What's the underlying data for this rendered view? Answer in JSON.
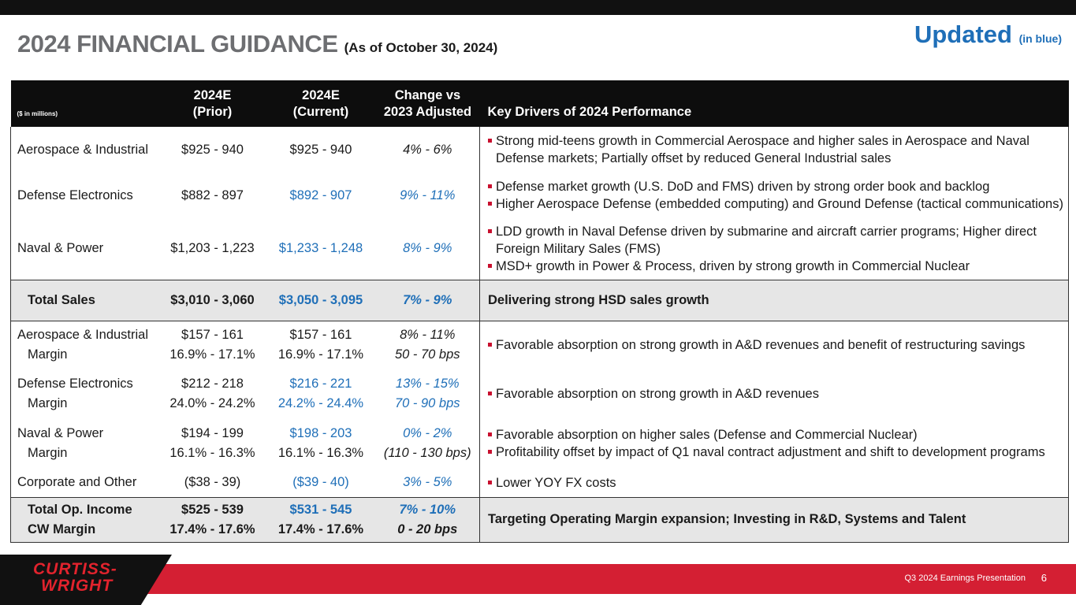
{
  "title": {
    "main": "2024 FINANCIAL GUIDANCE",
    "sub": "(As of October 30, 2024)"
  },
  "updated": {
    "label": "Updated",
    "note": "(in blue)"
  },
  "colors": {
    "accent_blue": "#1f6fb8",
    "brand_red": "#d41f33",
    "header_black": "#0d0d0d",
    "total_gray": "#e6e6e6"
  },
  "table": {
    "headers": {
      "units": "($ in millions)",
      "prior_1": "2024E",
      "prior_2": "(Prior)",
      "current_1": "2024E",
      "current_2": "(Current)",
      "change_1": "Change vs",
      "change_2": "2023 Adjusted",
      "drivers": "Key Drivers of 2024 Performance"
    },
    "sales": [
      {
        "name": "Aerospace & Industrial",
        "prior": "$925 - 940",
        "current": "$925 - 940",
        "change": "4% - 6%",
        "drivers": [
          "Strong mid-teens growth in Commercial Aerospace and higher sales in Aerospace and Naval Defense markets; Partially offset by reduced General Industrial sales"
        ]
      },
      {
        "name": "Defense Electronics",
        "prior": "$882 - 897",
        "current": "$892 - 907",
        "change": "9% - 11%",
        "drivers": [
          "Defense market growth (U.S. DoD and FMS) driven by strong order book and backlog",
          "Higher Aerospace Defense (embedded computing) and Ground Defense (tactical communications)"
        ]
      },
      {
        "name": "Naval & Power",
        "prior": "$1,203 - 1,223",
        "current": "$1,233 - 1,248",
        "change": "8% - 9%",
        "drivers": [
          "LDD growth in Naval Defense driven by submarine and aircraft carrier programs; Higher direct Foreign Military Sales (FMS)",
          "MSD+ growth in Power & Process, driven by strong growth in Commercial Nuclear"
        ]
      }
    ],
    "total_sales": {
      "name": "Total Sales",
      "prior": "$3,010 - 3,060",
      "current": "$3,050 - 3,095",
      "change": "7% - 9%",
      "driver": "Delivering strong HSD sales growth"
    },
    "income": [
      {
        "name": "Aerospace & Industrial",
        "margin_label": "Margin",
        "prior": "$157 - 161",
        "prior_margin": "16.9% - 17.1%",
        "current": "$157 - 161",
        "current_margin": "16.9% - 17.1%",
        "change": "8% - 11%",
        "change_margin": "50 - 70 bps",
        "drivers": [
          "Favorable absorption on strong growth in A&D revenues and benefit of restructuring savings"
        ]
      },
      {
        "name": "Defense Electronics",
        "margin_label": "Margin",
        "prior": "$212 - 218",
        "prior_margin": "24.0% - 24.2%",
        "current": "$216 - 221",
        "current_margin": "24.2% - 24.4%",
        "change": "13% - 15%",
        "change_margin": "70 - 90 bps",
        "drivers": [
          "Favorable absorption on strong growth in A&D revenues"
        ]
      },
      {
        "name": "Naval & Power",
        "margin_label": "Margin",
        "prior": "$194 - 199",
        "prior_margin": "16.1% - 16.3%",
        "current": "$198 - 203",
        "current_margin": "16.1% - 16.3%",
        "change": "0% - 2%",
        "change_margin": "(110 - 130 bps)",
        "drivers": [
          "Favorable absorption on higher sales (Defense and Commercial Nuclear)",
          "Profitability offset by impact of Q1 naval contract adjustment and shift to development programs"
        ]
      }
    ],
    "corporate": {
      "name": "Corporate and Other",
      "prior": "($38 - 39)",
      "current": "($39 - 40)",
      "change": "3% - 5%",
      "driver": "Lower YOY FX costs"
    },
    "total_income": {
      "name": "Total Op. Income",
      "margin_label": "CW Margin",
      "prior": "$525 - 539",
      "prior_margin": "17.4% - 17.6%",
      "current": "$531 - 545",
      "current_margin": "17.4% - 17.6%",
      "change": "7% - 10%",
      "change_margin": "0 - 20 bps",
      "driver": "Targeting Operating Margin expansion; Investing in R&D, Systems and Talent"
    }
  },
  "footer": {
    "logo_line1": "CURTISS-",
    "logo_line2": "WRIGHT",
    "presentation": "Q3 2024 Earnings Presentation",
    "page": "6"
  }
}
